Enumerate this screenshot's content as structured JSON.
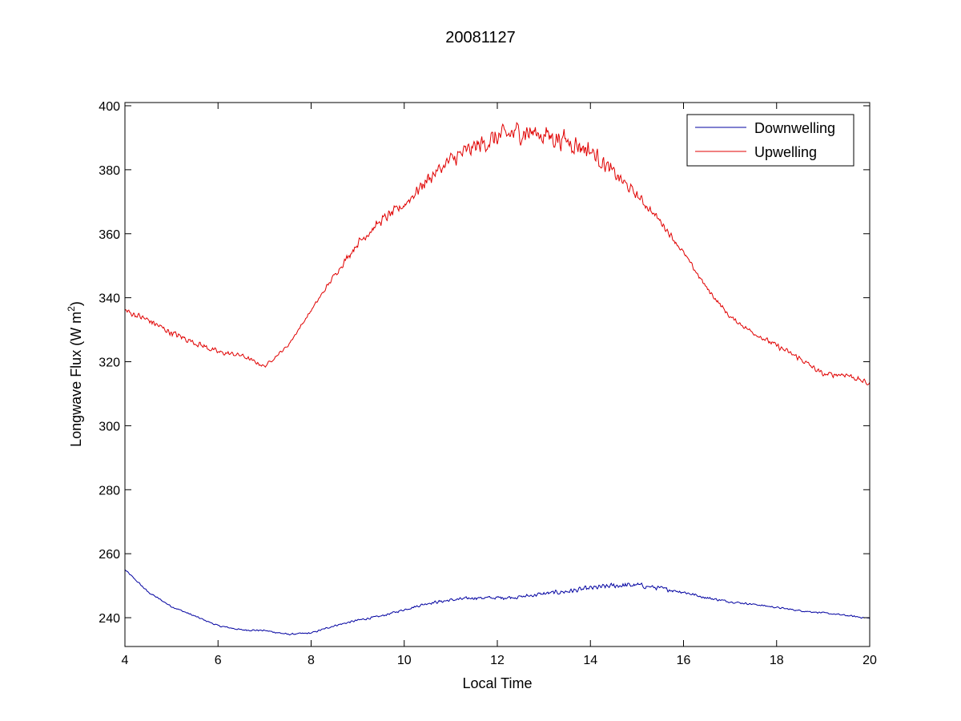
{
  "chart_data": {
    "type": "line",
    "title": "20081127",
    "xlabel": "Local Time",
    "ylabel": "Longwave Flux (W m",
    "ylabel_sup": "2",
    "ylabel_close": ")",
    "xlim": [
      4,
      20
    ],
    "ylim": [
      231,
      401
    ],
    "xticks": [
      4,
      6,
      8,
      10,
      12,
      14,
      16,
      18,
      20
    ],
    "yticks": [
      240,
      260,
      280,
      300,
      320,
      340,
      360,
      380,
      400
    ],
    "grid": false,
    "legend_position": "top-right",
    "series": [
      {
        "name": "Downwelling",
        "color": "#0000a0",
        "x": [
          4.0,
          4.5,
          5.0,
          5.5,
          6.0,
          6.5,
          7.0,
          7.5,
          8.0,
          8.5,
          9.0,
          9.5,
          10.0,
          10.5,
          11.0,
          11.5,
          12.0,
          12.5,
          13.0,
          13.5,
          14.0,
          14.5,
          15.0,
          15.5,
          16.0,
          16.5,
          17.0,
          17.5,
          18.0,
          18.5,
          19.0,
          19.5,
          20.0
        ],
        "values": [
          255,
          248,
          243.5,
          240.5,
          237.5,
          236.2,
          236,
          234.8,
          235.2,
          237.5,
          239.2,
          240.5,
          242.5,
          244.5,
          245.5,
          246.2,
          246.2,
          246.5,
          247.5,
          248.2,
          249.2,
          250,
          250.2,
          249.2,
          248,
          246.2,
          245,
          244.2,
          243.2,
          242.2,
          241.5,
          240.7,
          239.8
        ],
        "noise": [
          0.3,
          0.3,
          0.3,
          0.3,
          0.3,
          0.3,
          0.3,
          0.3,
          0.3,
          0.3,
          0.4,
          0.4,
          0.4,
          0.5,
          0.6,
          0.6,
          0.7,
          0.7,
          0.8,
          0.9,
          1.0,
          1.0,
          1.0,
          0.8,
          0.6,
          0.5,
          0.4,
          0.3,
          0.3,
          0.3,
          0.3,
          0.3,
          0.3
        ]
      },
      {
        "name": "Upwelling",
        "color": "#e00000",
        "x": [
          4.0,
          4.5,
          5.0,
          5.5,
          6.0,
          6.5,
          7.0,
          7.5,
          8.0,
          8.5,
          9.0,
          9.5,
          10.0,
          10.5,
          11.0,
          11.5,
          12.0,
          12.5,
          13.0,
          13.5,
          14.0,
          14.5,
          15.0,
          15.5,
          16.0,
          16.5,
          17.0,
          17.5,
          18.0,
          18.5,
          19.0,
          19.5,
          20.0
        ],
        "values": [
          336,
          333,
          329,
          326,
          323,
          322,
          318.5,
          325,
          336,
          347,
          357,
          364,
          369,
          377,
          383,
          387,
          390,
          392,
          391,
          389,
          386,
          379,
          372,
          364,
          354,
          343,
          334,
          329,
          325,
          321,
          316,
          316,
          313
        ],
        "noise": [
          1.2,
          1.2,
          1.2,
          1.2,
          1.0,
          0.8,
          0.6,
          0.5,
          0.6,
          1.0,
          1.5,
          1.8,
          2.0,
          2.5,
          3.0,
          3.5,
          4.0,
          4.5,
          4.5,
          4.0,
          3.5,
          2.5,
          1.8,
          1.2,
          1.0,
          0.8,
          0.8,
          0.8,
          1.0,
          1.0,
          1.0,
          1.0,
          1.0
        ]
      }
    ]
  }
}
